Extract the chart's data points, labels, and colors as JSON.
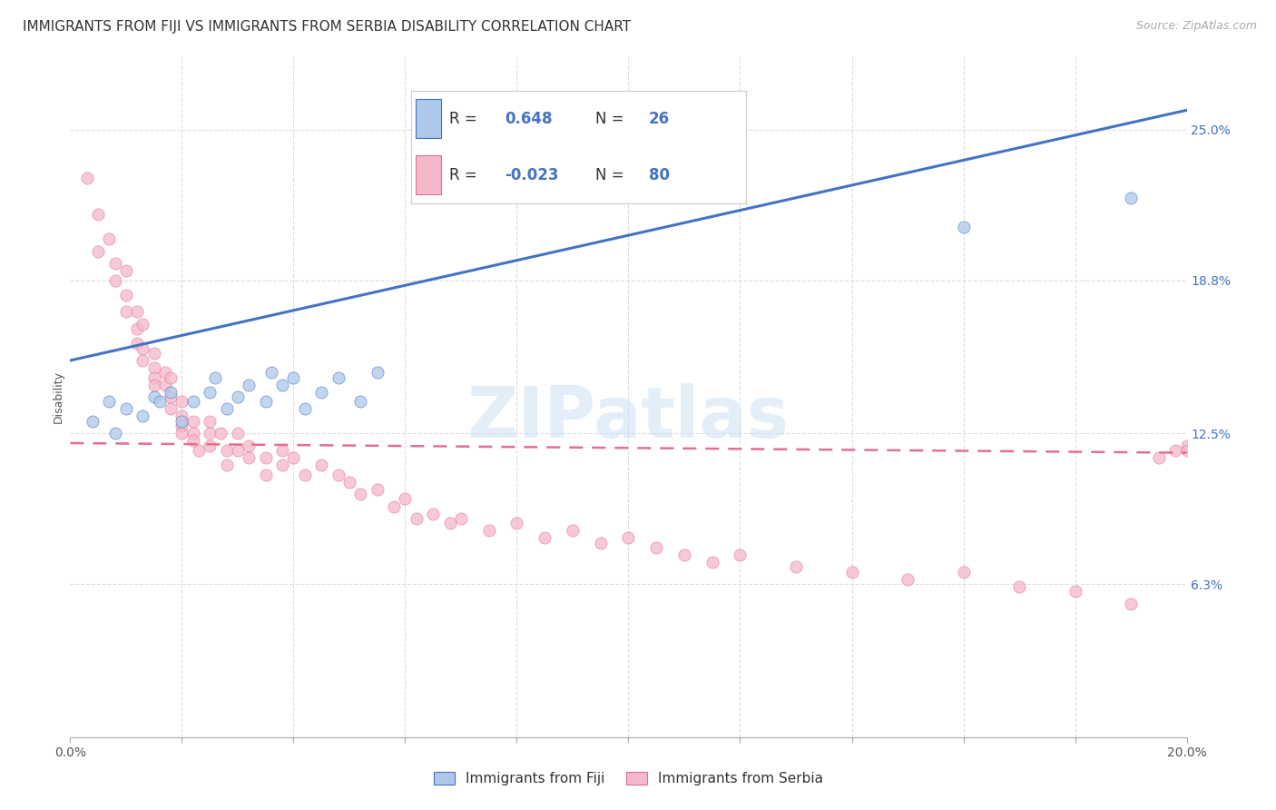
{
  "title": "IMMIGRANTS FROM FIJI VS IMMIGRANTS FROM SERBIA DISABILITY CORRELATION CHART",
  "source": "Source: ZipAtlas.com",
  "ylabel": "Disability",
  "watermark": "ZIPatlas",
  "xlim": [
    0.0,
    0.2
  ],
  "ylim": [
    0.0,
    0.28
  ],
  "ytick_positions_right": [
    0.25,
    0.188,
    0.125,
    0.063
  ],
  "ytick_labels_right": [
    "25.0%",
    "18.8%",
    "12.5%",
    "6.3%"
  ],
  "fiji_color": "#adc8ea",
  "serbia_color": "#f5b8ca",
  "fiji_edge_color": "#4472c4",
  "serbia_edge_color": "#e07090",
  "fiji_line_color": "#4472c4",
  "serbia_line_color": "#e07090",
  "fiji_R": 0.648,
  "fiji_N": 26,
  "serbia_R": -0.023,
  "serbia_N": 80,
  "fiji_line_x0": 0.0,
  "fiji_line_y0": 0.155,
  "fiji_line_x1": 0.2,
  "fiji_line_y1": 0.258,
  "serbia_line_x0": 0.0,
  "serbia_line_y0": 0.121,
  "serbia_line_x1": 0.2,
  "serbia_line_y1": 0.117,
  "fiji_scatter_x": [
    0.004,
    0.007,
    0.008,
    0.01,
    0.013,
    0.015,
    0.016,
    0.018,
    0.02,
    0.022,
    0.025,
    0.026,
    0.028,
    0.03,
    0.032,
    0.035,
    0.036,
    0.038,
    0.04,
    0.042,
    0.045,
    0.048,
    0.052,
    0.055,
    0.16,
    0.19
  ],
  "fiji_scatter_y": [
    0.13,
    0.138,
    0.125,
    0.135,
    0.132,
    0.14,
    0.138,
    0.142,
    0.13,
    0.138,
    0.142,
    0.148,
    0.135,
    0.14,
    0.145,
    0.138,
    0.15,
    0.145,
    0.148,
    0.135,
    0.142,
    0.148,
    0.138,
    0.15,
    0.21,
    0.222
  ],
  "serbia_scatter_x": [
    0.003,
    0.005,
    0.005,
    0.007,
    0.008,
    0.008,
    0.01,
    0.01,
    0.01,
    0.012,
    0.012,
    0.012,
    0.013,
    0.013,
    0.013,
    0.015,
    0.015,
    0.015,
    0.015,
    0.017,
    0.017,
    0.018,
    0.018,
    0.018,
    0.02,
    0.02,
    0.02,
    0.02,
    0.022,
    0.022,
    0.022,
    0.023,
    0.025,
    0.025,
    0.025,
    0.027,
    0.028,
    0.028,
    0.03,
    0.03,
    0.032,
    0.032,
    0.035,
    0.035,
    0.038,
    0.038,
    0.04,
    0.042,
    0.045,
    0.048,
    0.05,
    0.052,
    0.055,
    0.058,
    0.06,
    0.062,
    0.065,
    0.068,
    0.07,
    0.075,
    0.08,
    0.085,
    0.09,
    0.095,
    0.1,
    0.105,
    0.11,
    0.115,
    0.12,
    0.13,
    0.14,
    0.15,
    0.16,
    0.17,
    0.18,
    0.19,
    0.195,
    0.198,
    0.2,
    0.2
  ],
  "serbia_scatter_y": [
    0.23,
    0.215,
    0.2,
    0.205,
    0.195,
    0.188,
    0.192,
    0.182,
    0.175,
    0.175,
    0.168,
    0.162,
    0.17,
    0.16,
    0.155,
    0.158,
    0.152,
    0.148,
    0.145,
    0.15,
    0.145,
    0.148,
    0.14,
    0.135,
    0.138,
    0.132,
    0.128,
    0.125,
    0.13,
    0.125,
    0.122,
    0.118,
    0.13,
    0.125,
    0.12,
    0.125,
    0.118,
    0.112,
    0.125,
    0.118,
    0.12,
    0.115,
    0.115,
    0.108,
    0.118,
    0.112,
    0.115,
    0.108,
    0.112,
    0.108,
    0.105,
    0.1,
    0.102,
    0.095,
    0.098,
    0.09,
    0.092,
    0.088,
    0.09,
    0.085,
    0.088,
    0.082,
    0.085,
    0.08,
    0.082,
    0.078,
    0.075,
    0.072,
    0.075,
    0.07,
    0.068,
    0.065,
    0.068,
    0.062,
    0.06,
    0.055,
    0.115,
    0.118,
    0.12,
    0.118
  ],
  "background_color": "#ffffff",
  "grid_color": "#dddddd",
  "title_fontsize": 11,
  "axis_label_fontsize": 9,
  "tick_fontsize": 10,
  "legend_fontsize": 13
}
